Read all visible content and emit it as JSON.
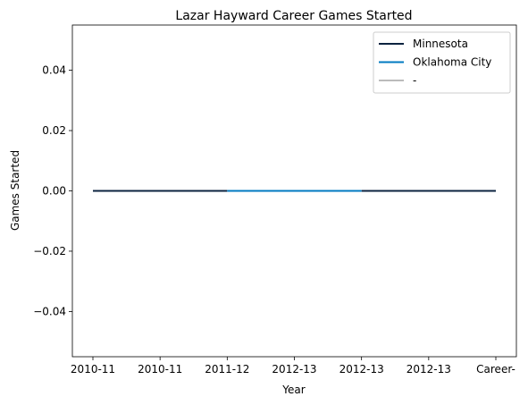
{
  "chart_data": {
    "type": "line",
    "title": "Lazar Hayward Career Games Started",
    "xlabel": "Year",
    "ylabel": "Games Started",
    "categories": [
      "2010-11",
      "2010-11",
      "2011-12",
      "2012-13",
      "2012-13",
      "2012-13",
      "Career-"
    ],
    "ylim": [
      -0.055,
      0.055
    ],
    "yticks": [
      "−0.04",
      "−0.02",
      "0.00",
      "0.02",
      "0.04"
    ],
    "ytick_values": [
      -0.04,
      -0.02,
      0.0,
      0.02,
      0.04
    ],
    "grid": false,
    "legend_position": "top-right",
    "series": [
      {
        "name": "Minnesota",
        "color": "#0c2340",
        "segments": [
          {
            "from": 0,
            "to": 2,
            "value": 0
          },
          {
            "from": 4,
            "to": 6,
            "value": 0
          }
        ]
      },
      {
        "name": "Oklahoma City",
        "color": "#007ac1",
        "segments": [
          {
            "from": 2,
            "to": 4,
            "value": 0
          }
        ]
      },
      {
        "name": "-",
        "color": "#bbbbbb",
        "segments": []
      }
    ]
  }
}
